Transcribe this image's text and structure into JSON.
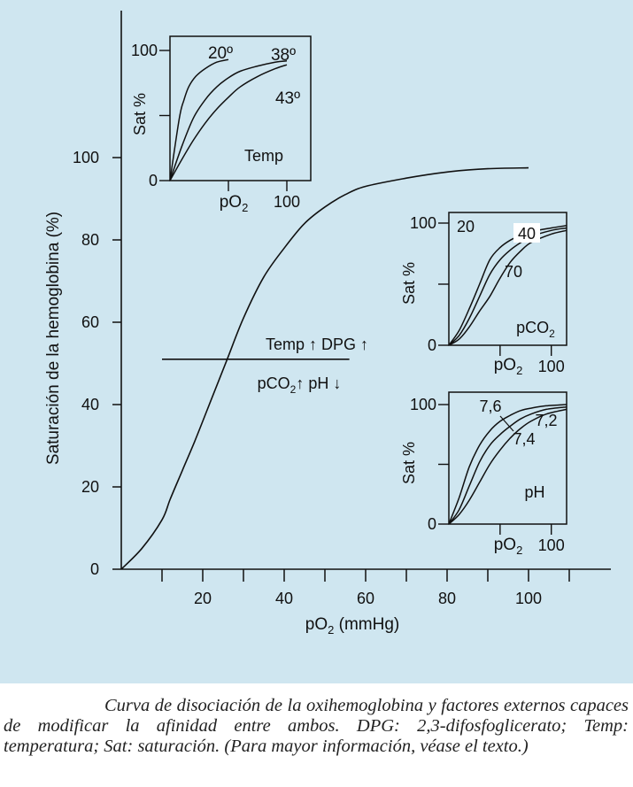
{
  "colors": {
    "background": "#cfe6f0",
    "ink": "#111111"
  },
  "chart_data": [
    {
      "type": "line",
      "name": "main",
      "xlabel_main": "pO",
      "xlabel_sub": "2",
      "xlabel_unit": " (mmHg)",
      "ylabel": "Saturación de la hemoglobina (%)",
      "xlim": [
        0,
        120
      ],
      "ylim": [
        0,
        100
      ],
      "xticks": [
        20,
        40,
        60,
        80,
        100
      ],
      "xticks_minor": [
        10,
        30,
        50,
        70,
        90,
        110
      ],
      "yticks": [
        0,
        20,
        40,
        60,
        80,
        100
      ],
      "grid": false,
      "series": [
        {
          "x": [
            0,
            5,
            10,
            12,
            15,
            18,
            22,
            26,
            30,
            35,
            40,
            45,
            50,
            55,
            60,
            70,
            80,
            90,
            100
          ],
          "y": [
            0,
            5,
            12,
            17,
            24,
            31,
            41,
            51,
            61,
            71,
            78,
            84,
            88,
            91,
            93,
            95,
            96.5,
            97.3,
            97.5
          ]
        }
      ],
      "annotation": {
        "line_y": 51,
        "line_x": [
          10,
          56
        ],
        "upper_text": "Temp ↑ DPG ↑",
        "lower_text_main": "pCO",
        "lower_text_sub": "2",
        "lower_text_rest": "↑ pH ↓"
      }
    },
    {
      "type": "line",
      "name": "temp-inset",
      "label": "Temp",
      "ylabel": "Sat %",
      "xlabel_main": "pO",
      "xlabel_sub": "2",
      "xlim": [
        0,
        100
      ],
      "ylim": [
        0,
        100
      ],
      "ytick_labels": {
        "100": "100",
        "50": "",
        "0": "0"
      },
      "xtick_labels": {
        "50": "",
        "100": "100"
      },
      "series": [
        {
          "label": "20º",
          "x": [
            0,
            8,
            12,
            16,
            22,
            30,
            40,
            50
          ],
          "y": [
            0,
            48,
            62,
            72,
            80,
            86,
            91,
            93
          ]
        },
        {
          "label": "38º",
          "x": [
            0,
            10,
            20,
            30,
            40,
            50,
            60,
            75,
            90,
            100
          ],
          "y": [
            0,
            26,
            48,
            62,
            72,
            79,
            84,
            88,
            91,
            92
          ]
        },
        {
          "label": "43º",
          "x": [
            0,
            10,
            20,
            30,
            40,
            50,
            60,
            75,
            90,
            100
          ],
          "y": [
            0,
            16,
            31,
            44,
            55,
            64,
            72,
            80,
            86,
            89
          ]
        }
      ]
    },
    {
      "type": "line",
      "name": "pco2-inset",
      "label_main": "pCO",
      "label_sub": "2",
      "ylabel": "Sat %",
      "xlabel_main": "pO",
      "xlabel_sub": "2",
      "xlim": [
        0,
        100
      ],
      "ylim": [
        0,
        100
      ],
      "ytick_labels": {
        "100": "100",
        "50": "",
        "0": "0"
      },
      "xtick_labels": {
        "50": "",
        "100": "100"
      },
      "series": [
        {
          "label": "20",
          "x": [
            0,
            10,
            20,
            30,
            40,
            50,
            60,
            70,
            80,
            100,
            115
          ],
          "y": [
            0,
            12,
            30,
            50,
            70,
            80,
            86,
            90,
            93,
            96,
            98
          ]
        },
        {
          "label": "40",
          "x": [
            0,
            10,
            20,
            30,
            40,
            50,
            60,
            70,
            80,
            100,
            115
          ],
          "y": [
            0,
            8,
            22,
            40,
            58,
            70,
            78,
            84,
            89,
            94,
            96
          ]
        },
        {
          "label": "70",
          "x": [
            0,
            10,
            20,
            30,
            40,
            50,
            60,
            70,
            80,
            100,
            115
          ],
          "y": [
            0,
            5,
            15,
            28,
            40,
            55,
            68,
            77,
            84,
            91,
            94
          ]
        }
      ]
    },
    {
      "type": "line",
      "name": "ph-inset",
      "label": "pH",
      "ylabel": "Sat %",
      "xlabel_main": "pO",
      "xlabel_sub": "2",
      "xlim": [
        0,
        100
      ],
      "ylim": [
        0,
        100
      ],
      "ytick_labels": {
        "100": "100",
        "50": "",
        "0": "0"
      },
      "xtick_labels": {
        "50": "",
        "100": "100"
      },
      "series": [
        {
          "label": "7,6",
          "x": [
            0,
            10,
            20,
            30,
            40,
            50,
            60,
            70,
            80,
            95,
            115
          ],
          "y": [
            0,
            22,
            48,
            66,
            78,
            86,
            91,
            95,
            97,
            99,
            100
          ]
        },
        {
          "label": "7,4",
          "x": [
            0,
            10,
            20,
            30,
            40,
            50,
            60,
            70,
            80,
            95,
            115
          ],
          "y": [
            0,
            12,
            32,
            52,
            66,
            75,
            82,
            88,
            92,
            96,
            98
          ]
        },
        {
          "label": "7,2",
          "x": [
            0,
            10,
            20,
            30,
            40,
            50,
            60,
            70,
            80,
            95,
            115
          ],
          "y": [
            0,
            8,
            20,
            35,
            50,
            62,
            72,
            80,
            86,
            92,
            96
          ]
        }
      ]
    }
  ],
  "caption": "Curva de disociación de la oxihemoglobina y factores externos capaces de modificar la afinidad entre ambos. DPG: 2,3-difosfoglicerato; Temp: temperatura; Sat: saturación. (Para mayor información, véase el texto.)"
}
